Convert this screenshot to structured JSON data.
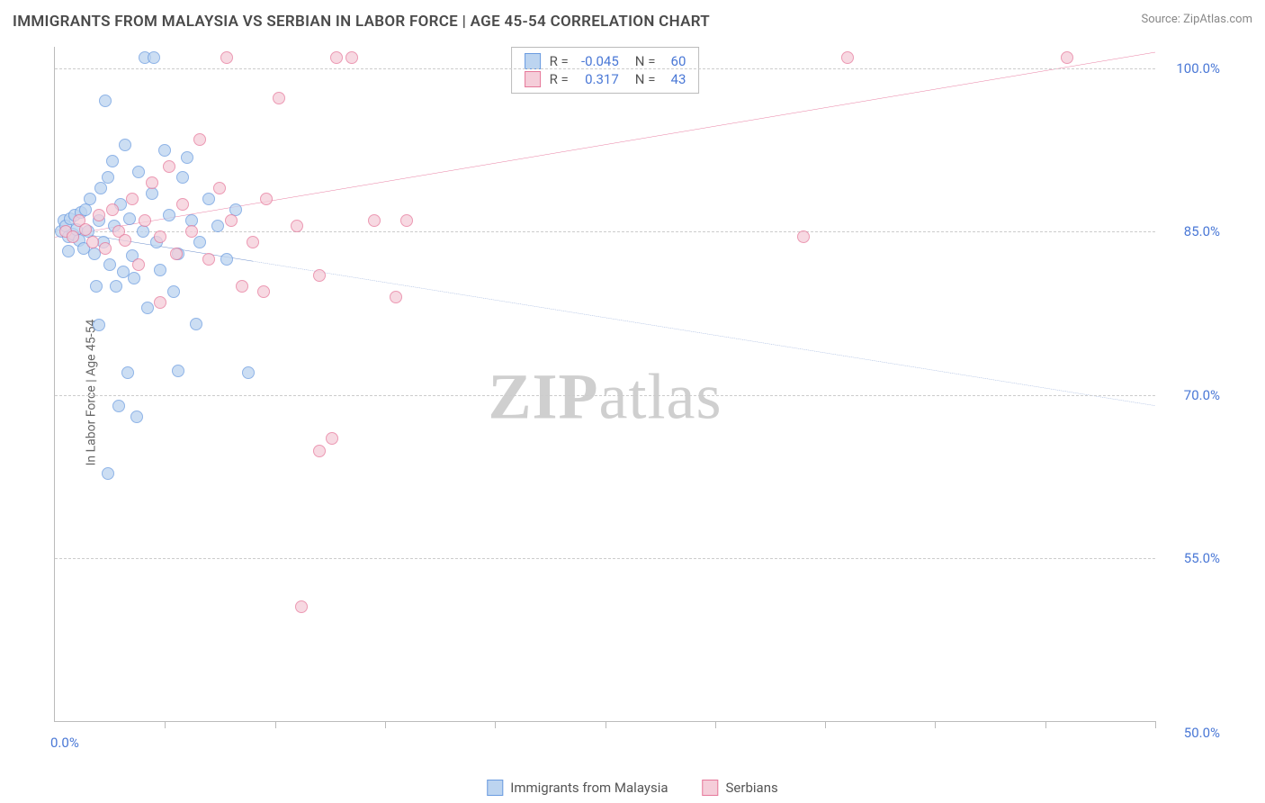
{
  "title": "IMMIGRANTS FROM MALAYSIA VS SERBIAN IN LABOR FORCE | AGE 45-54 CORRELATION CHART",
  "source": "Source: ZipAtlas.com",
  "ylabel": "In Labor Force | Age 45-54",
  "watermark_bold": "ZIP",
  "watermark_rest": "atlas",
  "chart": {
    "type": "scatter",
    "background_color": "#ffffff",
    "grid_color": "#cccccc",
    "axis_color": "#bbbbbb",
    "label_color": "#4a78d6",
    "title_fontsize": 17,
    "label_fontsize": 14,
    "tick_fontsize": 15,
    "xlim": [
      0,
      50
    ],
    "ylim": [
      40,
      102
    ],
    "yticks": [
      55.0,
      70.0,
      85.0,
      100.0
    ],
    "ytick_labels": [
      "55.0%",
      "70.0%",
      "85.0%",
      "100.0%"
    ],
    "xtick_positions": [
      5,
      10,
      15,
      20,
      25,
      30,
      35,
      40,
      45,
      50
    ],
    "x_min_label": "0.0%",
    "x_max_label": "50.0%",
    "series": [
      {
        "key": "malaysia",
        "label": "Immigrants from Malaysia",
        "fill": "#bcd4f0",
        "stroke": "#6a9be0",
        "line_color": "#2b5bb5",
        "r_value": "-0.045",
        "n_value": "60",
        "trend": {
          "x1": 0,
          "y1": 85.2,
          "x2": 50,
          "y2": 69.0,
          "solid_until_x": 9
        },
        "points": [
          [
            0.3,
            85
          ],
          [
            0.4,
            86
          ],
          [
            0.5,
            85.5
          ],
          [
            0.6,
            84.5
          ],
          [
            0.7,
            86.2
          ],
          [
            0.8,
            84.8
          ],
          [
            0.9,
            86.5
          ],
          [
            1.0,
            85.2
          ],
          [
            1.1,
            84.2
          ],
          [
            1.2,
            86.8
          ],
          [
            1.3,
            83.5
          ],
          [
            1.4,
            87.0
          ],
          [
            1.5,
            85.0
          ],
          [
            1.6,
            88.0
          ],
          [
            1.8,
            83.0
          ],
          [
            2.0,
            86.0
          ],
          [
            2.1,
            89.0
          ],
          [
            2.2,
            84.0
          ],
          [
            2.3,
            97.0
          ],
          [
            2.4,
            90.0
          ],
          [
            2.5,
            82.0
          ],
          [
            2.6,
            91.5
          ],
          [
            2.7,
            85.5
          ],
          [
            2.8,
            80.0
          ],
          [
            3.0,
            87.5
          ],
          [
            3.1,
            81.3
          ],
          [
            3.2,
            93.0
          ],
          [
            3.4,
            86.2
          ],
          [
            3.5,
            82.8
          ],
          [
            3.6,
            80.7
          ],
          [
            3.8,
            90.5
          ],
          [
            4.0,
            85.0
          ],
          [
            4.1,
            101.0
          ],
          [
            4.2,
            78.0
          ],
          [
            4.4,
            88.5
          ],
          [
            4.5,
            101.0
          ],
          [
            4.6,
            84.0
          ],
          [
            4.8,
            81.5
          ],
          [
            5.0,
            92.5
          ],
          [
            5.2,
            86.5
          ],
          [
            5.4,
            79.5
          ],
          [
            5.6,
            83.0
          ],
          [
            5.8,
            90.0
          ],
          [
            6.0,
            91.8
          ],
          [
            6.2,
            86.0
          ],
          [
            6.4,
            76.5
          ],
          [
            6.6,
            84.0
          ],
          [
            7.0,
            88.0
          ],
          [
            7.4,
            85.5
          ],
          [
            7.8,
            82.5
          ],
          [
            8.2,
            87.0
          ],
          [
            3.3,
            72.0
          ],
          [
            2.9,
            69.0
          ],
          [
            3.7,
            68.0
          ],
          [
            2.0,
            76.4
          ],
          [
            2.4,
            62.8
          ],
          [
            5.6,
            72.2
          ],
          [
            1.9,
            80.0
          ],
          [
            8.8,
            72.0
          ],
          [
            0.6,
            83.2
          ]
        ]
      },
      {
        "key": "serbian",
        "label": "Serbians",
        "fill": "#f5cdd9",
        "stroke": "#e6789a",
        "line_color": "#e0457a",
        "r_value": "0.317",
        "n_value": "43",
        "trend": {
          "x1": 0,
          "y1": 84.5,
          "x2": 50,
          "y2": 101.5,
          "solid_until_x": 50
        },
        "points": [
          [
            0.5,
            85
          ],
          [
            0.8,
            84.5
          ],
          [
            1.1,
            86
          ],
          [
            1.4,
            85.2
          ],
          [
            1.7,
            84.0
          ],
          [
            2.0,
            86.5
          ],
          [
            2.3,
            83.5
          ],
          [
            2.6,
            87.0
          ],
          [
            2.9,
            85.0
          ],
          [
            3.2,
            84.2
          ],
          [
            3.5,
            88.0
          ],
          [
            3.8,
            82.0
          ],
          [
            4.1,
            86.0
          ],
          [
            4.4,
            89.5
          ],
          [
            4.8,
            84.5
          ],
          [
            5.2,
            91.0
          ],
          [
            5.5,
            83.0
          ],
          [
            5.8,
            87.5
          ],
          [
            6.2,
            85.0
          ],
          [
            6.6,
            93.5
          ],
          [
            7.0,
            82.5
          ],
          [
            7.5,
            89.0
          ],
          [
            8.0,
            86.0
          ],
          [
            7.8,
            101.0
          ],
          [
            8.5,
            80.0
          ],
          [
            9.0,
            84.0
          ],
          [
            9.6,
            88.0
          ],
          [
            10.2,
            97.3
          ],
          [
            11.0,
            85.5
          ],
          [
            12.0,
            81.0
          ],
          [
            12.8,
            101.0
          ],
          [
            13.5,
            101.0
          ],
          [
            14.5,
            86.0
          ],
          [
            15.5,
            79.0
          ],
          [
            16.0,
            86.0
          ],
          [
            12.6,
            66.0
          ],
          [
            12.0,
            64.8
          ],
          [
            11.2,
            50.5
          ],
          [
            9.5,
            79.5
          ],
          [
            4.8,
            78.5
          ],
          [
            34.0,
            84.5
          ],
          [
            36.0,
            101.0
          ],
          [
            46.0,
            101.0
          ]
        ]
      }
    ],
    "stats_labels": {
      "r": "R =",
      "n": "N ="
    }
  }
}
